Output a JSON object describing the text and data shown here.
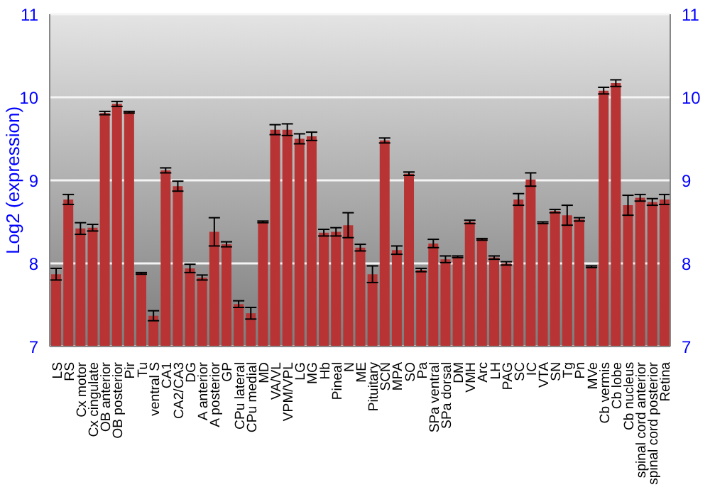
{
  "chart_data": {
    "type": "bar",
    "ylabel": "Log2 (expression)",
    "categories": [
      "LS",
      "RS",
      "Cx motor",
      "Cx cingulate",
      "OB anterior",
      "OB posterior",
      "Pir",
      "Tu",
      "ventral S",
      "CA1",
      "CA2/CA3",
      "DG",
      "A anterior",
      "A posterior",
      "GP",
      "CPu lateral",
      "CPu medial",
      "MD",
      "VA/VL",
      "VPM/VPL",
      "LG",
      "MG",
      "Hb",
      "Pineal",
      "N",
      "ME",
      "Pituitary",
      "SCN",
      "MPA",
      "SO",
      "Pa",
      "SPa ventral",
      "SPa dorsal",
      "DM",
      "VMH",
      "Arc",
      "LH",
      "PAG",
      "SC",
      "IC",
      "VTA",
      "SN",
      "Tg",
      "Pn",
      "MVe",
      "Cb vermis",
      "Cb lobe",
      "Cb nucleus",
      "spinal cord anterior",
      "spinal cord posterior",
      "Retina"
    ],
    "values": [
      7.87,
      8.77,
      8.42,
      8.43,
      9.81,
      9.92,
      9.82,
      7.88,
      7.37,
      9.12,
      8.93,
      7.94,
      7.83,
      8.38,
      8.23,
      7.51,
      7.4,
      8.5,
      9.61,
      9.61,
      9.5,
      9.53,
      8.37,
      8.38,
      8.46,
      8.19,
      7.87,
      9.48,
      8.16,
      9.08,
      7.92,
      8.24,
      8.05,
      8.08,
      8.5,
      8.29,
      8.07,
      8.0,
      8.77,
      9.01,
      8.49,
      8.63,
      8.58,
      8.53,
      7.96,
      10.08,
      10.17,
      8.7,
      8.79,
      8.74,
      8.77
    ],
    "errors": [
      0.07,
      0.06,
      0.07,
      0.04,
      0.02,
      0.03,
      0.01,
      0.01,
      0.06,
      0.03,
      0.06,
      0.05,
      0.03,
      0.17,
      0.03,
      0.04,
      0.07,
      0.01,
      0.06,
      0.07,
      0.06,
      0.05,
      0.04,
      0.05,
      0.15,
      0.04,
      0.1,
      0.03,
      0.05,
      0.02,
      0.02,
      0.05,
      0.04,
      0.01,
      0.02,
      0.01,
      0.02,
      0.02,
      0.07,
      0.08,
      0.01,
      0.02,
      0.12,
      0.02,
      0.01,
      0.04,
      0.04,
      0.12,
      0.04,
      0.04,
      0.06
    ],
    "color": "#b83434",
    "ylim": [
      7,
      11
    ],
    "yticks": [
      7,
      8,
      9,
      10,
      11
    ],
    "y2lim": [
      7,
      11
    ],
    "y2ticks": [
      7,
      8,
      9,
      10,
      11
    ],
    "grid": "y"
  }
}
